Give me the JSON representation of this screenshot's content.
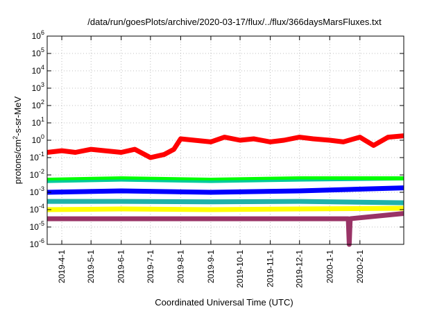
{
  "chart_data": {
    "type": "line",
    "title": "/data/run/goesPlots/archive/2020-03-17/flux/../flux/366daysMarsFluxes.txt",
    "xlabel": "Coordinated Universal Time (UTC)",
    "ylabel": {
      "pre": "protons/cm",
      "sup": "2",
      "post": "-s-sr-MeV"
    },
    "yscale": "log",
    "ylim": [
      1e-06,
      1000000.0
    ],
    "xlim": [
      "2019-03-17",
      "2020-03-17"
    ],
    "grid": true,
    "legend": "none",
    "y_ticks": [
      {
        "base": "10",
        "exp": "-6",
        "value": 1e-06
      },
      {
        "base": "10",
        "exp": "-5",
        "value": 1e-05
      },
      {
        "base": "10",
        "exp": "-4",
        "value": 0.0001
      },
      {
        "base": "10",
        "exp": "-3",
        "value": 0.001
      },
      {
        "base": "10",
        "exp": "-2",
        "value": 0.01
      },
      {
        "base": "10",
        "exp": "-1",
        "value": 0.1
      },
      {
        "base": "10",
        "exp": "0",
        "value": 1
      },
      {
        "base": "10",
        "exp": "1",
        "value": 10
      },
      {
        "base": "10",
        "exp": "2",
        "value": 100
      },
      {
        "base": "10",
        "exp": "3",
        "value": 1000
      },
      {
        "base": "10",
        "exp": "4",
        "value": 10000
      },
      {
        "base": "10",
        "exp": "5",
        "value": 100000
      },
      {
        "base": "10",
        "exp": "6",
        "value": 1000000
      }
    ],
    "x_ticks": [
      {
        "label": "2019-4-1",
        "date": "2019-04-01"
      },
      {
        "label": "2019-5-1",
        "date": "2019-05-01"
      },
      {
        "label": "2019-6-1",
        "date": "2019-06-01"
      },
      {
        "label": "2019-7-1",
        "date": "2019-07-01"
      },
      {
        "label": "2019-8-1",
        "date": "2019-08-01"
      },
      {
        "label": "2019-9-1",
        "date": "2019-09-01"
      },
      {
        "label": "2019-10-1",
        "date": "2019-10-01"
      },
      {
        "label": "2019-11-1",
        "date": "2019-11-01"
      },
      {
        "label": "2019-12-1",
        "date": "2019-12-01"
      },
      {
        "label": "2020-1-1",
        "date": "2020-01-01"
      },
      {
        "label": "2020-2-1",
        "date": "2020-02-01"
      }
    ],
    "series": [
      {
        "color": "#ff0000",
        "x": [
          "2019-03-17",
          "2019-04-01",
          "2019-04-15",
          "2019-05-01",
          "2019-05-15",
          "2019-06-01",
          "2019-06-15",
          "2019-07-01",
          "2019-07-15",
          "2019-07-25",
          "2019-08-01",
          "2019-08-15",
          "2019-09-01",
          "2019-09-15",
          "2019-10-01",
          "2019-10-15",
          "2019-11-01",
          "2019-11-15",
          "2019-12-01",
          "2019-12-15",
          "2020-01-01",
          "2020-01-15",
          "2020-02-01",
          "2020-02-15",
          "2020-03-01",
          "2020-03-17"
        ],
        "values": [
          0.2,
          0.25,
          0.2,
          0.3,
          0.25,
          0.2,
          0.3,
          0.1,
          0.15,
          0.3,
          1.2,
          1.0,
          0.8,
          1.5,
          1.0,
          1.2,
          0.8,
          1.0,
          1.5,
          1.2,
          1.0,
          0.8,
          1.5,
          0.5,
          1.5,
          1.8
        ]
      },
      {
        "color": "#00ff00",
        "x": [
          "2019-03-17",
          "2019-06-01",
          "2019-09-01",
          "2019-12-01",
          "2020-03-17"
        ],
        "values": [
          0.005,
          0.006,
          0.005,
          0.006,
          0.006
        ]
      },
      {
        "color": "#00cc99",
        "x": [
          "2019-03-17",
          "2019-06-01",
          "2019-09-01",
          "2019-12-01",
          "2020-03-17"
        ],
        "values": [
          0.0035,
          0.004,
          0.0035,
          0.004,
          0.0035
        ]
      },
      {
        "color": "#ffffff",
        "x": [
          "2019-03-17",
          "2019-06-01",
          "2019-09-01",
          "2019-12-01",
          "2020-03-17"
        ],
        "values": [
          0.0025,
          0.003,
          0.0025,
          0.003,
          0.0035
        ]
      },
      {
        "color": "#0000ff",
        "x": [
          "2019-03-17",
          "2019-06-01",
          "2019-09-01",
          "2019-12-01",
          "2020-03-17"
        ],
        "values": [
          0.001,
          0.0012,
          0.001,
          0.0012,
          0.0018
        ]
      },
      {
        "color": "#20b2aa",
        "x": [
          "2019-03-17",
          "2019-06-01",
          "2019-09-01",
          "2019-12-01",
          "2020-03-17"
        ],
        "values": [
          0.0003,
          0.0003,
          0.00028,
          0.0003,
          0.00025
        ]
      },
      {
        "color": "#ffff00",
        "x": [
          "2019-03-17",
          "2019-06-01",
          "2019-09-01",
          "2019-12-01",
          "2020-03-17"
        ],
        "values": [
          0.0001,
          0.00011,
          0.0001,
          0.00011,
          0.00012
        ]
      },
      {
        "color": "#993366",
        "x": [
          "2019-03-17",
          "2019-06-01",
          "2019-09-01",
          "2019-12-01",
          "2020-01-20",
          "2020-01-21",
          "2020-01-22",
          "2020-03-17"
        ],
        "values": [
          3e-05,
          3e-05,
          3e-05,
          3e-05,
          3e-05,
          1e-06,
          3e-05,
          6e-05
        ]
      }
    ]
  }
}
